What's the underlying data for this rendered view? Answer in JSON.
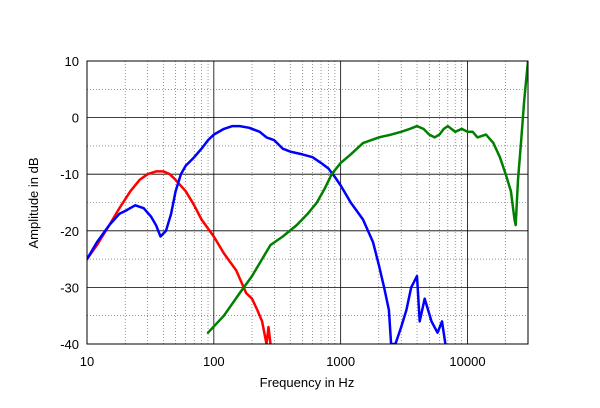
{
  "chart_data": {
    "type": "line",
    "xlabel": "Frequency in Hz",
    "ylabel": "Amplitude in dB",
    "x_scale": "log",
    "xlim": [
      10,
      30000
    ],
    "ylim": [
      -40,
      10
    ],
    "grid": true,
    "x_tick_labels": [
      {
        "value": 10,
        "label": "10"
      },
      {
        "value": 100,
        "label": "100"
      },
      {
        "value": 1000,
        "label": "1000"
      },
      {
        "value": 10000,
        "label": "10000"
      }
    ],
    "y_ticks": [
      10,
      0,
      -10,
      -20,
      -30,
      -40
    ],
    "series": [
      {
        "color": "#ff0000",
        "points": [
          [
            10,
            -25
          ],
          [
            12,
            -22.5
          ],
          [
            15,
            -19
          ],
          [
            18,
            -16
          ],
          [
            22,
            -13
          ],
          [
            26,
            -11
          ],
          [
            30,
            -10
          ],
          [
            35,
            -9.5
          ],
          [
            40,
            -9.5
          ],
          [
            45,
            -10
          ],
          [
            50,
            -11
          ],
          [
            60,
            -13
          ],
          [
            70,
            -15.5
          ],
          [
            80,
            -18
          ],
          [
            100,
            -21
          ],
          [
            120,
            -24
          ],
          [
            150,
            -27
          ],
          [
            180,
            -31
          ],
          [
            200,
            -32
          ],
          [
            220,
            -34
          ],
          [
            240,
            -36
          ],
          [
            250,
            -38
          ],
          [
            260,
            -40
          ],
          [
            270,
            -37
          ],
          [
            280,
            -40
          ]
        ]
      },
      {
        "color": "#0000ff",
        "points": [
          [
            10,
            -25
          ],
          [
            12,
            -22
          ],
          [
            15,
            -19
          ],
          [
            18,
            -17
          ],
          [
            20,
            -16.5
          ],
          [
            24,
            -15.5
          ],
          [
            28,
            -16
          ],
          [
            32,
            -17.5
          ],
          [
            35,
            -19
          ],
          [
            38,
            -21
          ],
          [
            42,
            -20
          ],
          [
            46,
            -17
          ],
          [
            50,
            -13
          ],
          [
            55,
            -10
          ],
          [
            60,
            -8.5
          ],
          [
            70,
            -7
          ],
          [
            80,
            -5.5
          ],
          [
            90,
            -4
          ],
          [
            100,
            -3
          ],
          [
            120,
            -2
          ],
          [
            140,
            -1.5
          ],
          [
            160,
            -1.5
          ],
          [
            190,
            -1.8
          ],
          [
            230,
            -2.5
          ],
          [
            260,
            -3.5
          ],
          [
            300,
            -4
          ],
          [
            350,
            -5.5
          ],
          [
            400,
            -6
          ],
          [
            500,
            -6.5
          ],
          [
            600,
            -7
          ],
          [
            700,
            -8
          ],
          [
            800,
            -9
          ],
          [
            900,
            -10.5
          ],
          [
            1000,
            -12
          ],
          [
            1200,
            -15
          ],
          [
            1500,
            -18
          ],
          [
            1800,
            -22
          ],
          [
            2000,
            -26
          ],
          [
            2200,
            -30
          ],
          [
            2400,
            -34
          ],
          [
            2500,
            -40
          ],
          [
            2700,
            -40
          ],
          [
            3000,
            -37
          ],
          [
            3300,
            -34
          ],
          [
            3600,
            -30
          ],
          [
            4000,
            -28
          ],
          [
            4200,
            -36
          ],
          [
            4600,
            -32
          ],
          [
            5200,
            -36
          ],
          [
            5800,
            -38
          ],
          [
            6300,
            -36
          ],
          [
            6700,
            -40
          ]
        ]
      },
      {
        "color": "#008000",
        "points": [
          [
            90,
            -38
          ],
          [
            120,
            -35
          ],
          [
            160,
            -31
          ],
          [
            200,
            -28
          ],
          [
            240,
            -25
          ],
          [
            280,
            -22.5
          ],
          [
            350,
            -21
          ],
          [
            450,
            -19
          ],
          [
            550,
            -17
          ],
          [
            650,
            -15
          ],
          [
            750,
            -12.5
          ],
          [
            850,
            -10
          ],
          [
            1000,
            -8
          ],
          [
            1200,
            -6.5
          ],
          [
            1500,
            -4.5
          ],
          [
            2000,
            -3.5
          ],
          [
            2500,
            -3
          ],
          [
            3000,
            -2.5
          ],
          [
            3500,
            -2
          ],
          [
            4000,
            -1.5
          ],
          [
            4500,
            -2
          ],
          [
            5000,
            -3
          ],
          [
            5500,
            -3.5
          ],
          [
            6000,
            -3
          ],
          [
            6500,
            -2
          ],
          [
            7000,
            -1.5
          ],
          [
            8000,
            -2.5
          ],
          [
            9000,
            -2
          ],
          [
            10000,
            -2.5
          ],
          [
            11000,
            -2.5
          ],
          [
            12000,
            -3.5
          ],
          [
            14000,
            -3
          ],
          [
            16000,
            -4.5
          ],
          [
            18000,
            -7
          ],
          [
            20000,
            -10
          ],
          [
            22000,
            -13
          ],
          [
            23500,
            -18
          ],
          [
            24000,
            -19
          ],
          [
            25000,
            -11
          ],
          [
            26500,
            -4
          ],
          [
            28000,
            3
          ],
          [
            30000,
            10
          ]
        ]
      }
    ]
  }
}
